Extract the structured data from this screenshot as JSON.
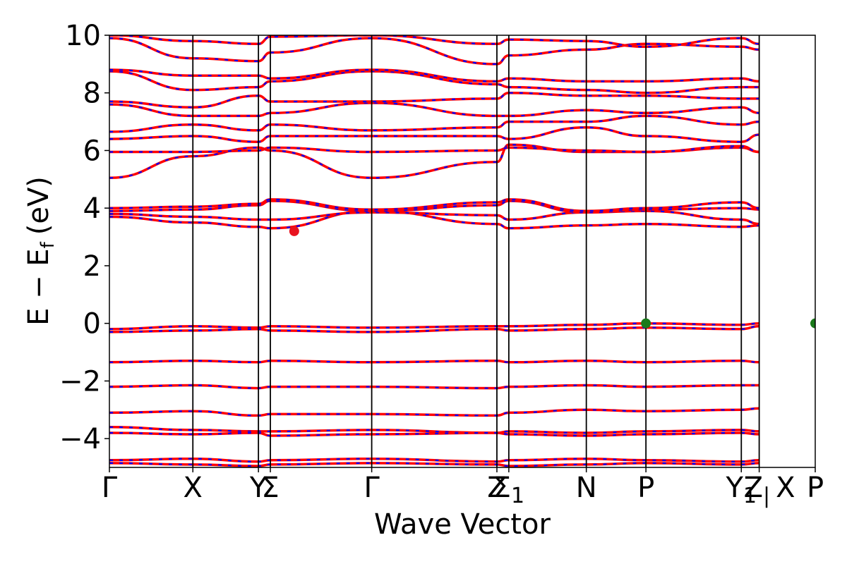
{
  "chart_data": {
    "type": "line",
    "title": "",
    "xlabel": "Wave Vector",
    "ylabel": "E − E",
    "ylabel_sub": "f",
    "ylabel_unit": "(eV)",
    "ylim": [
      -5,
      10
    ],
    "yticks": [
      {
        "value": 10,
        "label": "10"
      },
      {
        "value": 8,
        "label": "8"
      },
      {
        "value": 6,
        "label": "6"
      },
      {
        "value": 4,
        "label": "4"
      },
      {
        "value": 2,
        "label": "2"
      },
      {
        "value": 0,
        "label": "0"
      },
      {
        "value": -2,
        "label": "−2"
      },
      {
        "value": -4,
        "label": "−4"
      }
    ],
    "xlim": [
      0,
      11.84
    ],
    "kpoints": [
      {
        "x": 0.0,
        "label": "Γ"
      },
      {
        "x": 1.4,
        "label": "X"
      },
      {
        "x": 2.5,
        "label": "Y"
      },
      {
        "x": 2.7,
        "label": "Σ"
      },
      {
        "x": 4.4,
        "label": "Γ"
      },
      {
        "x": 6.5,
        "label": "Z"
      },
      {
        "x": 6.7,
        "label": "Σ",
        "sub": "1"
      },
      {
        "x": 8.0,
        "label": "N"
      },
      {
        "x": 9.0,
        "label": "P"
      },
      {
        "x": 10.6,
        "label": "Y",
        "sub": "1"
      },
      {
        "x": 10.9,
        "label": "Z",
        "sub": "|",
        "extra": "X"
      },
      {
        "x": 11.84,
        "label": "P"
      }
    ],
    "series": [
      {
        "values": [
          -4.75,
          -4.7,
          -4.8,
          -4.75,
          -4.7,
          -4.8,
          -4.75,
          -4.7,
          -4.75,
          -4.8,
          -4.75
        ]
      },
      {
        "values": [
          -4.85,
          -4.9,
          -4.95,
          -4.9,
          -4.85,
          -4.9,
          -4.95,
          -4.9,
          -4.85,
          -4.9,
          -4.85
        ]
      },
      {
        "values": [
          -3.6,
          -3.7,
          -3.75,
          -3.75,
          -3.7,
          -3.8,
          -3.75,
          -3.8,
          -3.75,
          -3.7,
          -3.75
        ]
      },
      {
        "values": [
          -3.8,
          -3.85,
          -3.8,
          -3.9,
          -3.85,
          -3.8,
          -3.85,
          -3.9,
          -3.85,
          -3.8,
          -3.85
        ]
      },
      {
        "values": [
          -3.1,
          -3.05,
          -3.2,
          -3.15,
          -3.15,
          -3.2,
          -3.1,
          -3.0,
          -3.05,
          -3.0,
          -2.95
        ]
      },
      {
        "values": [
          -2.2,
          -2.15,
          -2.25,
          -2.2,
          -2.2,
          -2.25,
          -2.2,
          -2.15,
          -2.2,
          -2.15,
          -2.15
        ]
      },
      {
        "values": [
          -1.35,
          -1.3,
          -1.35,
          -1.3,
          -1.35,
          -1.3,
          -1.35,
          -1.3,
          -1.35,
          -1.3,
          -1.35
        ]
      },
      {
        "values": [
          -0.2,
          -0.1,
          -0.15,
          -0.1,
          -0.15,
          -0.1,
          -0.1,
          -0.05,
          0.0,
          -0.05,
          0.0
        ]
      },
      {
        "values": [
          -0.3,
          -0.25,
          -0.2,
          -0.25,
          -0.3,
          -0.2,
          -0.25,
          -0.2,
          -0.15,
          -0.2,
          -0.1
        ]
      },
      {
        "values": [
          3.7,
          3.5,
          3.35,
          3.3,
          3.9,
          3.45,
          3.3,
          3.4,
          3.45,
          3.35,
          3.4
        ]
      },
      {
        "values": [
          3.8,
          3.7,
          3.6,
          3.6,
          3.85,
          3.75,
          3.6,
          3.85,
          3.9,
          3.6,
          3.45
        ]
      },
      {
        "values": [
          3.9,
          3.95,
          4.1,
          4.25,
          3.9,
          4.1,
          4.25,
          3.85,
          3.95,
          4.0,
          3.95
        ]
      },
      {
        "values": [
          4.0,
          4.05,
          4.15,
          4.3,
          3.95,
          4.2,
          4.3,
          3.9,
          4.0,
          4.2,
          4.0
        ]
      },
      {
        "values": [
          5.05,
          5.8,
          6.1,
          6.0,
          5.05,
          5.6,
          6.2,
          5.95,
          5.95,
          6.1,
          5.95
        ]
      },
      {
        "values": [
          5.95,
          5.95,
          6.0,
          6.1,
          5.95,
          6.0,
          6.1,
          6.0,
          5.95,
          6.15,
          5.95
        ]
      },
      {
        "values": [
          6.4,
          6.5,
          6.3,
          6.5,
          6.5,
          6.5,
          6.4,
          6.8,
          6.5,
          6.3,
          6.55
        ]
      },
      {
        "values": [
          6.65,
          6.9,
          6.7,
          6.9,
          6.7,
          6.8,
          7.0,
          7.0,
          7.2,
          6.9,
          7.0
        ]
      },
      {
        "values": [
          7.6,
          7.2,
          7.2,
          7.3,
          7.65,
          7.2,
          7.2,
          7.4,
          7.3,
          7.5,
          7.3
        ]
      },
      {
        "values": [
          7.7,
          7.5,
          7.9,
          7.7,
          7.7,
          7.8,
          8.0,
          7.9,
          7.9,
          7.8,
          7.8
        ]
      },
      {
        "values": [
          8.75,
          8.1,
          8.2,
          8.4,
          8.75,
          8.3,
          8.2,
          8.1,
          8.0,
          8.2,
          8.2
        ]
      },
      {
        "values": [
          8.8,
          8.6,
          8.6,
          8.5,
          8.8,
          8.4,
          8.5,
          8.4,
          8.4,
          8.5,
          8.4
        ]
      },
      {
        "values": [
          9.9,
          9.2,
          9.1,
          9.4,
          9.9,
          9.0,
          9.3,
          9.5,
          9.7,
          9.6,
          9.5
        ]
      },
      {
        "values": [
          10.0,
          9.8,
          9.7,
          9.95,
          10.0,
          9.7,
          9.85,
          9.8,
          9.6,
          9.9,
          9.7
        ]
      }
    ],
    "markers": [
      {
        "x": 3.1,
        "y": 3.2,
        "color": "#e8131f"
      },
      {
        "x": 9.0,
        "y": 0.0,
        "color": "#1a7a1a"
      },
      {
        "x": 11.84,
        "y": 0.0,
        "color": "#1a7a1a"
      }
    ],
    "line_colors": {
      "primary": "#ff0000",
      "secondary": "#0000ff"
    },
    "grid": false,
    "legend": "none"
  }
}
